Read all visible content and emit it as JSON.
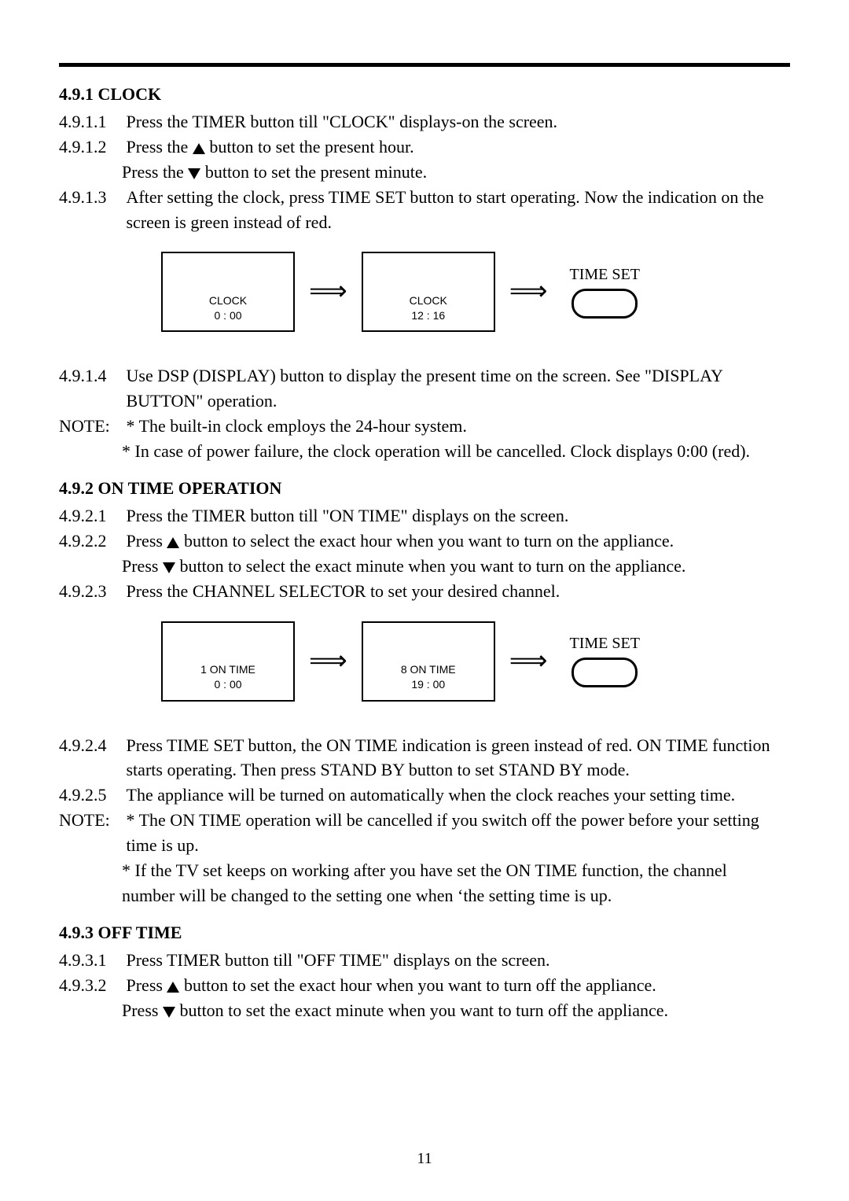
{
  "page_number": "11",
  "s491": {
    "heading": "4.9.1 CLOCK",
    "i1_num": "4.9.1.1",
    "i1_txt": "Press the TIMER button till \"CLOCK\" displays-on the screen.",
    "i2_num": "4.9.1.2",
    "i2_a": "Press the ",
    "i2_b": " button to set the present hour.",
    "i2_c": "Press the ",
    "i2_d": " button to set the present minute.",
    "i3_num": "4.9.1.3",
    "i3_txt": "After setting the clock, press TIME SET button to start operating. Now the indication on the screen is green instead of red.",
    "diagram": {
      "box1_l1": "CLOCK",
      "box1_l2": "0 : 00",
      "box2_l1": "CLOCK",
      "box2_l2": "12 : 16",
      "timeset": "TIME SET"
    },
    "i4_num": "4.9.1.4",
    "i4_txt": "Use DSP (DISPLAY) button to display the present time on the screen. See \"DISPLAY BUTTON\" operation.",
    "note_label": "NOTE:",
    "note1": "* The built-in clock employs the 24-hour system.",
    "note2": "* In case of power failure, the clock operation will be cancelled. Clock displays 0:00 (red)."
  },
  "s492": {
    "heading": "4.9.2 ON TIME OPERATION",
    "i1_num": "4.9.2.1",
    "i1_txt": "Press the TIMER button till \"ON  TIME\" displays on the screen.",
    "i2_num": "4.9.2.2",
    "i2_a": "Press  ",
    "i2_b": " button to select the exact hour when you want to turn on the appliance.",
    "i2_c": "Press  ",
    "i2_d": " button to select the exact minute when you want to turn on the appliance.",
    "i3_num": "4.9.2.3",
    "i3_txt": "Press the CHANNEL SELECTOR to set your desired channel.",
    "diagram": {
      "box1_l1": "1 ON TIME",
      "box1_l2": "0 : 00",
      "box2_l1": "8 ON TIME",
      "box2_l2": "19 : 00",
      "timeset": "TIME SET"
    },
    "i4_num": "4.9.2.4",
    "i4_txt": "Press TIME SET button, the ON TIME indication is green instead of red. ON TIME function starts operating. Then press STAND BY button to set STAND BY mode.",
    "i5_num": "4.9.2.5",
    "i5_txt": "The appliance will be turned on automatically when the clock reaches your setting time.",
    "note_label": "NOTE:",
    "note1": "* The ON TIME operation will be cancelled if you switch off the power before your setting time is up.",
    "note2": "* If the TV set keeps on working after you have set the ON TIME function, the channel number will be changed to the setting one when ‘the setting time is up."
  },
  "s493": {
    "heading": "4.9.3 OFF TIME",
    "i1_num": "4.9.3.1",
    "i1_txt": "Press TIMER button till \"OFF TIME\" displays on the screen.",
    "i2_num": "4.9.3.2",
    "i2_a": "Press  ",
    "i2_b": " button to set the exact hour when you want to turn off the appliance.",
    "i2_c": "Press  ",
    "i2_d": " button to set the exact minute when you want to turn off the appliance."
  }
}
